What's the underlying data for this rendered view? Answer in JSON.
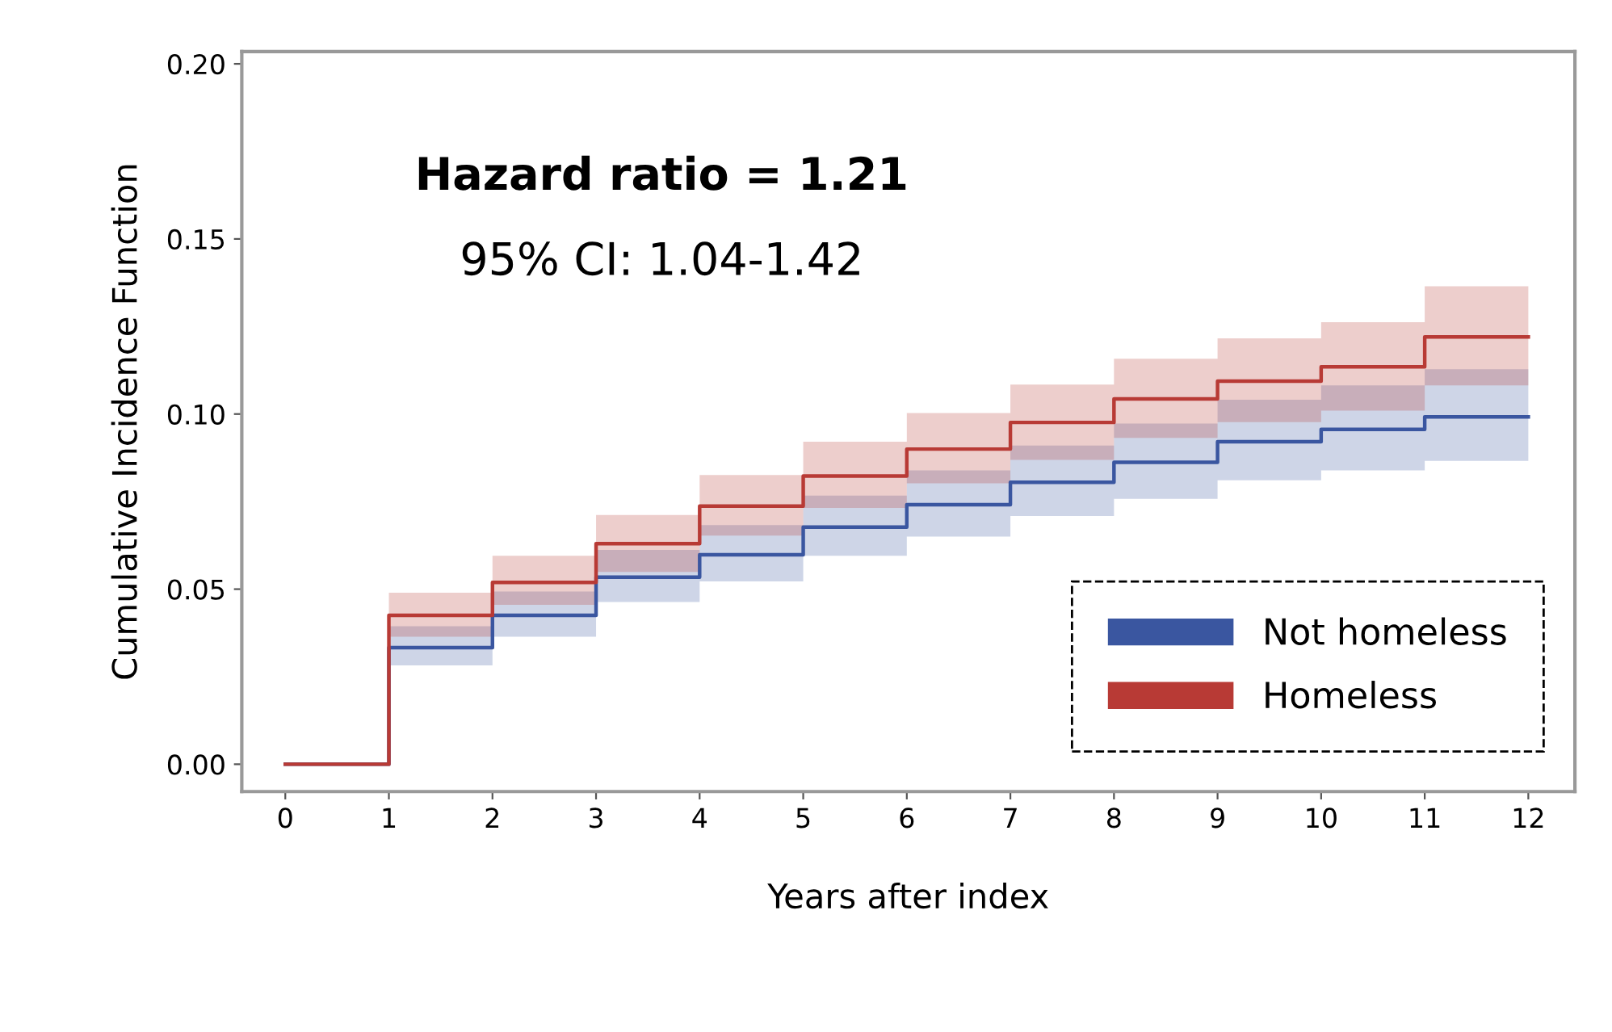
{
  "chart_data": {
    "type": "step",
    "xlabel": "Years after index",
    "ylabel": "Cumulative Incidence Function",
    "annotations": [
      "Hazard ratio = 1.21",
      "95% CI: 1.04-1.42"
    ],
    "x": [
      0,
      1,
      2,
      3,
      4,
      5,
      6,
      7,
      8,
      9,
      10,
      11,
      12
    ],
    "series": [
      {
        "name": "Not homeless",
        "color": "#3a56a0",
        "values": [
          0,
          0.0333,
          0.0425,
          0.0534,
          0.0598,
          0.0677,
          0.0741,
          0.0805,
          0.0862,
          0.0921,
          0.0956,
          0.0992,
          0.0992
        ],
        "lower": [
          null,
          0.0282,
          0.0364,
          0.0463,
          0.0522,
          0.0595,
          0.065,
          0.0709,
          0.0758,
          0.0811,
          0.0839,
          0.0866,
          0.0866
        ],
        "upper": [
          null,
          0.0394,
          0.0493,
          0.0612,
          0.0683,
          0.0767,
          0.0839,
          0.091,
          0.0973,
          0.1041,
          0.1082,
          0.1128,
          0.1128
        ]
      },
      {
        "name": "Homeless",
        "color": "#b83a35",
        "values": [
          0,
          0.0425,
          0.0519,
          0.063,
          0.0737,
          0.0823,
          0.09,
          0.0976,
          0.1043,
          0.1094,
          0.1135,
          0.122,
          0.122
        ],
        "lower": [
          null,
          0.0364,
          0.0455,
          0.0549,
          0.0653,
          0.0732,
          0.0802,
          0.0869,
          0.0932,
          0.0977,
          0.101,
          0.1082,
          0.1082
        ],
        "upper": [
          null,
          0.049,
          0.0595,
          0.0712,
          0.0826,
          0.0921,
          0.1003,
          0.1084,
          0.1158,
          0.1216,
          0.1262,
          0.1365,
          0.1365
        ]
      }
    ],
    "xlim": [
      -0.42,
      12.45
    ],
    "ylim": [
      -0.0078,
      0.2035
    ],
    "xticks": [
      0,
      1,
      2,
      3,
      4,
      5,
      6,
      7,
      8,
      9,
      10,
      11,
      12
    ],
    "yticks": [
      {
        "value": 0,
        "label": "0.00"
      },
      {
        "value": 0.05,
        "label": "0.05"
      },
      {
        "value": 0.1,
        "label": "0.10"
      },
      {
        "value": 0.15,
        "label": "0.15"
      },
      {
        "value": 0.2,
        "label": "0.20"
      }
    ],
    "legend": "bottom right",
    "grid": false
  }
}
